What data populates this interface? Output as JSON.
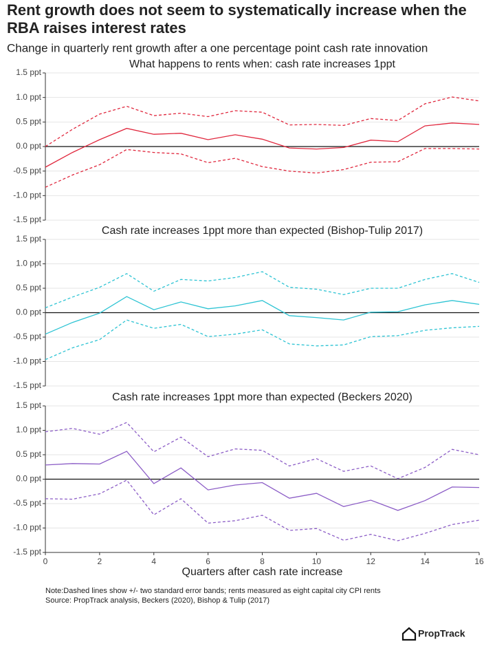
{
  "header": {
    "title_lines": [
      "Rent growth does not seem to systematically increase when the",
      "RBA raises interest rates"
    ],
    "subtitle": "Change in quarterly rent growth after a one percentage point cash rate innovation"
  },
  "chart_data": [
    {
      "type": "line",
      "title": "What happens to rents when: cash rate increases 1ppt",
      "x": [
        0,
        1,
        2,
        3,
        4,
        5,
        6,
        7,
        8,
        9,
        10,
        11,
        12,
        13,
        14,
        15,
        16
      ],
      "xlim": [
        0,
        16
      ],
      "ylim": [
        -1.5,
        1.5
      ],
      "yticks": [
        {
          "value": 1.5,
          "label": "1.5 ppt"
        },
        {
          "value": 1.0,
          "label": "1.0 ppt"
        },
        {
          "value": 0.5,
          "label": "0.5 ppt"
        },
        {
          "value": 0,
          "label": "0.0 ppt"
        },
        {
          "value": -0.5,
          "label": "-0.5 ppt"
        },
        {
          "value": -1.0,
          "label": "-1.0 ppt"
        },
        {
          "value": -1.5,
          "label": "-1.5 ppt"
        }
      ],
      "grid": true,
      "series": [
        {
          "color": "#e0263c",
          "dashed": false,
          "values": [
            -0.42,
            -0.12,
            0.14,
            0.37,
            0.25,
            0.27,
            0.14,
            0.24,
            0.15,
            -0.03,
            -0.05,
            -0.02,
            0.13,
            0.1,
            0.42,
            0.48,
            0.45
          ]
        },
        {
          "color": "#e0263c",
          "dashed": true,
          "values": [
            0.0,
            0.35,
            0.66,
            0.82,
            0.63,
            0.68,
            0.61,
            0.73,
            0.7,
            0.44,
            0.45,
            0.43,
            0.57,
            0.53,
            0.87,
            1.01,
            0.93
          ]
        },
        {
          "color": "#e0263c",
          "dashed": true,
          "values": [
            -0.83,
            -0.58,
            -0.37,
            -0.06,
            -0.12,
            -0.15,
            -0.33,
            -0.24,
            -0.41,
            -0.5,
            -0.54,
            -0.47,
            -0.32,
            -0.31,
            -0.04,
            -0.04,
            -0.05
          ]
        }
      ]
    },
    {
      "type": "line",
      "title": "Cash rate increases 1ppt more than expected (Bishop-Tulip 2017)",
      "x": [
        0,
        1,
        2,
        3,
        4,
        5,
        6,
        7,
        8,
        9,
        10,
        11,
        12,
        13,
        14,
        15,
        16
      ],
      "xlim": [
        0,
        16
      ],
      "ylim": [
        -1.5,
        1.5
      ],
      "yticks": [
        {
          "value": 1.5,
          "label": "1.5 ppt"
        },
        {
          "value": 1.0,
          "label": "1.0 ppt"
        },
        {
          "value": 0.5,
          "label": "0.5 ppt"
        },
        {
          "value": 0,
          "label": "0.0 ppt"
        },
        {
          "value": -0.5,
          "label": "-0.5 ppt"
        },
        {
          "value": -1.0,
          "label": "-1.0 ppt"
        },
        {
          "value": -1.5,
          "label": "-1.5 ppt"
        }
      ],
      "grid": true,
      "series": [
        {
          "color": "#2bc3d3",
          "dashed": false,
          "values": [
            -0.44,
            -0.2,
            -0.01,
            0.33,
            0.06,
            0.22,
            0.08,
            0.14,
            0.25,
            -0.06,
            -0.1,
            -0.15,
            0.01,
            0.02,
            0.16,
            0.25,
            0.17
          ]
        },
        {
          "color": "#2bc3d3",
          "dashed": true,
          "values": [
            0.1,
            0.32,
            0.52,
            0.8,
            0.44,
            0.68,
            0.65,
            0.72,
            0.84,
            0.52,
            0.48,
            0.37,
            0.5,
            0.5,
            0.68,
            0.8,
            0.62
          ]
        },
        {
          "color": "#2bc3d3",
          "dashed": true,
          "values": [
            -0.96,
            -0.72,
            -0.55,
            -0.15,
            -0.32,
            -0.24,
            -0.49,
            -0.44,
            -0.35,
            -0.64,
            -0.68,
            -0.66,
            -0.49,
            -0.47,
            -0.36,
            -0.31,
            -0.28
          ]
        }
      ]
    },
    {
      "type": "line",
      "title": "Cash rate increases 1ppt more than expected (Beckers 2020)",
      "x": [
        0,
        1,
        2,
        3,
        4,
        5,
        6,
        7,
        8,
        9,
        10,
        11,
        12,
        13,
        14,
        15,
        16
      ],
      "xlim": [
        0,
        16
      ],
      "xticks": [
        0,
        2,
        4,
        6,
        8,
        10,
        12,
        14,
        16
      ],
      "xlabel": "Quarters after cash rate increase",
      "ylim": [
        -1.5,
        1.5
      ],
      "yticks": [
        {
          "value": 1.5,
          "label": "1.5 ppt"
        },
        {
          "value": 1.0,
          "label": "1.0 ppt"
        },
        {
          "value": 0.5,
          "label": "0.5 ppt"
        },
        {
          "value": 0,
          "label": "0.0 ppt"
        },
        {
          "value": -0.5,
          "label": "-0.5 ppt"
        },
        {
          "value": -1.0,
          "label": "-1.0 ppt"
        },
        {
          "value": -1.5,
          "label": "-1.5 ppt"
        }
      ],
      "grid": true,
      "series": [
        {
          "color": "#8b5cc6",
          "dashed": false,
          "values": [
            0.29,
            0.32,
            0.31,
            0.57,
            -0.09,
            0.23,
            -0.22,
            -0.12,
            -0.07,
            -0.39,
            -0.29,
            -0.56,
            -0.43,
            -0.64,
            -0.44,
            -0.16,
            -0.17
          ]
        },
        {
          "color": "#8b5cc6",
          "dashed": true,
          "values": [
            0.97,
            1.04,
            0.92,
            1.16,
            0.56,
            0.86,
            0.46,
            0.62,
            0.59,
            0.27,
            0.42,
            0.16,
            0.27,
            0.01,
            0.24,
            0.61,
            0.5
          ]
        },
        {
          "color": "#8b5cc6",
          "dashed": true,
          "values": [
            -0.4,
            -0.41,
            -0.3,
            -0.02,
            -0.73,
            -0.4,
            -0.9,
            -0.85,
            -0.74,
            -1.05,
            -1.01,
            -1.25,
            -1.13,
            -1.26,
            -1.11,
            -0.93,
            -0.84
          ]
        }
      ]
    }
  ],
  "footer": {
    "notes": [
      "Note:Dashed lines show +/- two standard error bands; rents measured as eight capital city CPI rents",
      "Source: PropTrack analysis, Beckers (2020), Bishop & Tulip (2017)"
    ],
    "brand": "PropTrack"
  }
}
